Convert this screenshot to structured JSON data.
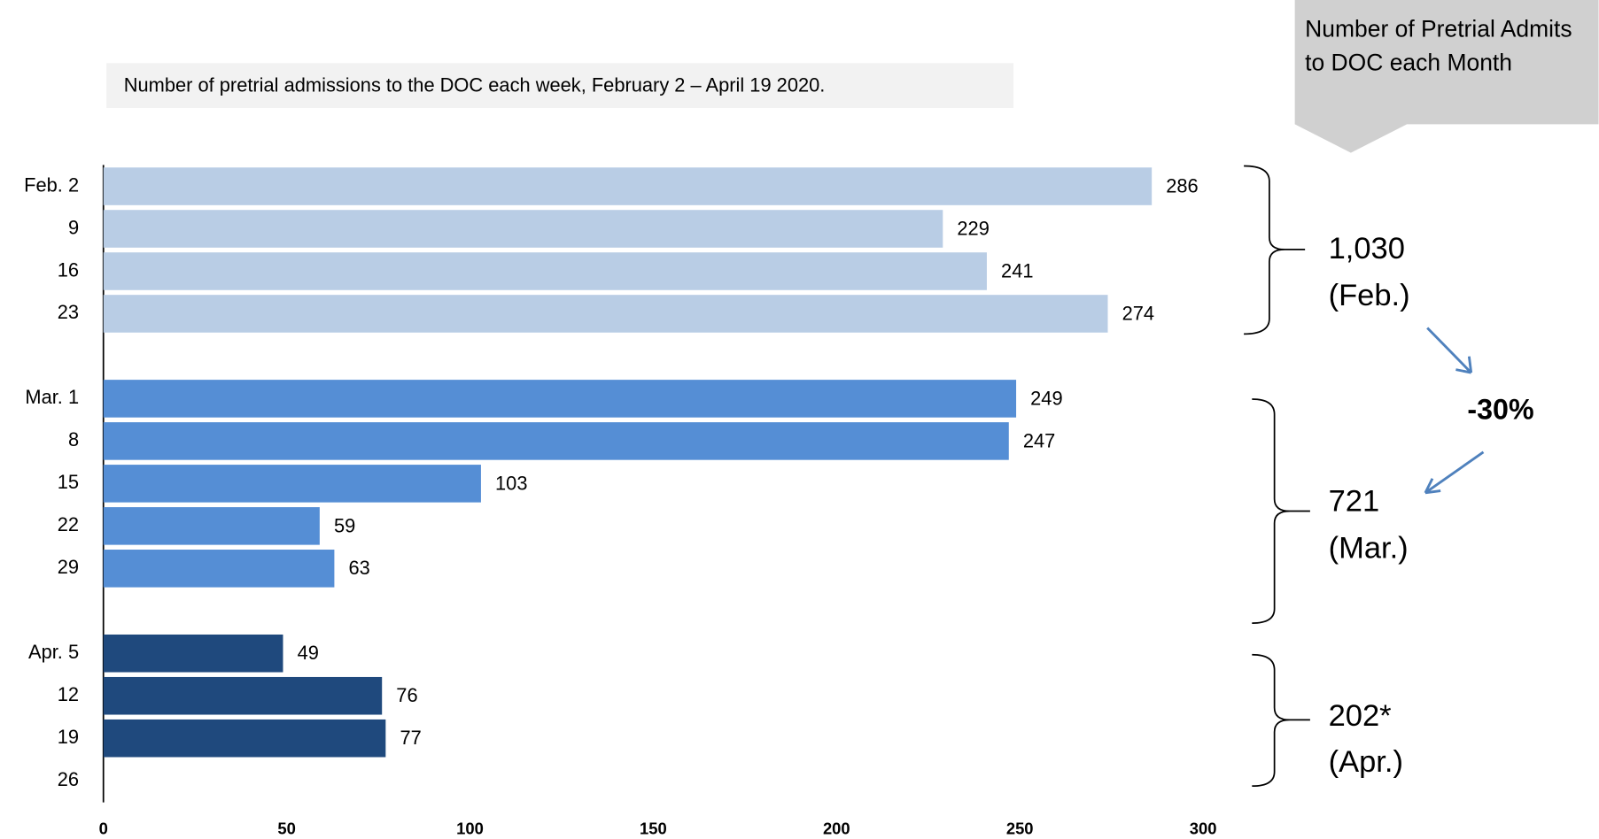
{
  "chart_data": {
    "type": "bar",
    "orientation": "horizontal",
    "title": "Number of pretrial admissions to the DOC each week, February 2 – April 19 2020.",
    "categories": [
      "Feb. 2",
      "9",
      "16",
      "23",
      null,
      "Mar. 1",
      "8",
      "15",
      "22",
      "29",
      null,
      "Apr. 5",
      "12",
      "19",
      "26"
    ],
    "values": [
      286,
      229,
      241,
      274,
      null,
      249,
      247,
      103,
      59,
      63,
      null,
      49,
      76,
      77,
      null
    ],
    "colors": [
      "#b9cde5",
      "#b9cde5",
      "#b9cde5",
      "#b9cde5",
      null,
      "#558ed5",
      "#558ed5",
      "#558ed5",
      "#558ed5",
      "#558ed5",
      null,
      "#1f497d",
      "#1f497d",
      "#1f497d",
      null
    ],
    "xlim": [
      0,
      300
    ],
    "xticks": [
      0,
      50,
      100,
      150,
      200,
      250,
      300
    ],
    "grid": false,
    "annotations": {
      "callout": "Number of Pretrial Admits to DOC each Month",
      "totals": [
        {
          "total": "1,030",
          "month": "(Feb.)"
        },
        {
          "total": "721",
          "month": "(Mar.)"
        },
        {
          "total": "202*",
          "month": "(Apr.)"
        }
      ],
      "change": "-30%"
    }
  }
}
